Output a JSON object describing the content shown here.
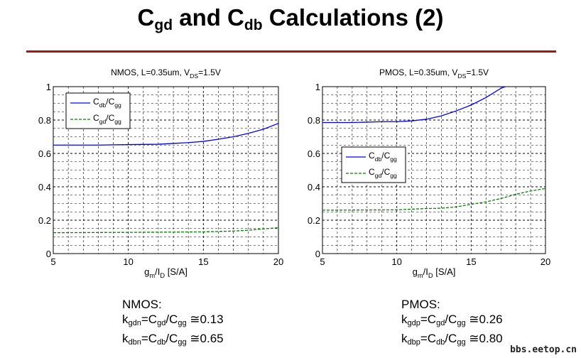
{
  "title": [
    {
      "t": "C"
    },
    {
      "s": "gd"
    },
    {
      "t": " and C"
    },
    {
      "s": "db"
    },
    {
      "t": " Calculations (2)"
    }
  ],
  "watermark": "bbs.eetop.cn",
  "notes": [
    {
      "heading": "NMOS:",
      "lines": [
        [
          {
            "t": "k"
          },
          {
            "s": "gdn"
          },
          {
            "t": "=C"
          },
          {
            "s": "gd"
          },
          {
            "t": "/C"
          },
          {
            "s": "gg"
          },
          {
            "t": " ≅0.13"
          }
        ],
        [
          {
            "t": "k"
          },
          {
            "s": "dbn"
          },
          {
            "t": "=C"
          },
          {
            "s": "db"
          },
          {
            "t": "/C"
          },
          {
            "s": "gg"
          },
          {
            "t": " ≅0.65"
          }
        ]
      ]
    },
    {
      "heading": "PMOS:",
      "lines": [
        [
          {
            "t": "k"
          },
          {
            "s": "gdp"
          },
          {
            "t": "=C"
          },
          {
            "s": "gd"
          },
          {
            "t": "/C"
          },
          {
            "s": "gg"
          },
          {
            "t": " ≅0.26"
          }
        ],
        [
          {
            "t": "k"
          },
          {
            "s": "dbp"
          },
          {
            "t": "=C"
          },
          {
            "s": "db"
          },
          {
            "t": "/C"
          },
          {
            "s": "gg"
          },
          {
            "t": " ≅0.80"
          }
        ]
      ]
    }
  ],
  "chart_data": [
    {
      "type": "line",
      "title": [
        {
          "t": "NMOS, L=0.35um, V"
        },
        {
          "s": "DS"
        },
        {
          "t": "=1.5V"
        }
      ],
      "xlabel": [
        {
          "t": "g"
        },
        {
          "s": "m"
        },
        {
          "t": "/I"
        },
        {
          "s": "D"
        },
        {
          "t": "  [S/A]"
        }
      ],
      "xlim": [
        5,
        20
      ],
      "ylim": [
        0,
        1
      ],
      "xticks": [
        "5",
        "10",
        "15",
        "20"
      ],
      "yticks": [
        "0",
        "0.2",
        "0.4",
        "0.6",
        "0.8",
        "1"
      ],
      "grid": true,
      "legend_placement": "top-left",
      "series": [
        {
          "name": [
            {
              "t": "C"
            },
            {
              "s": "db"
            },
            {
              "t": "/C"
            },
            {
              "s": "gg"
            }
          ],
          "color": "#0000ff",
          "style": "solid",
          "x": [
            5,
            8,
            10,
            12,
            14,
            15,
            16,
            17,
            18,
            19,
            20
          ],
          "y": [
            0.65,
            0.65,
            0.653,
            0.655,
            0.665,
            0.672,
            0.685,
            0.7,
            0.72,
            0.745,
            0.78
          ]
        },
        {
          "name": [
            {
              "t": "C"
            },
            {
              "s": "gd"
            },
            {
              "t": "/C"
            },
            {
              "s": "gg"
            }
          ],
          "color": "#008000",
          "style": "dashed",
          "x": [
            5,
            10,
            15,
            17,
            18,
            19,
            20
          ],
          "y": [
            0.125,
            0.127,
            0.13,
            0.135,
            0.14,
            0.148,
            0.155
          ]
        }
      ]
    },
    {
      "type": "line",
      "title": [
        {
          "t": "PMOS, L=0.35um, V"
        },
        {
          "s": "DS"
        },
        {
          "t": "=1.5V"
        }
      ],
      "xlabel": [
        {
          "t": "g"
        },
        {
          "s": "m"
        },
        {
          "t": "/I"
        },
        {
          "s": "D"
        },
        {
          "t": "  [S/A]"
        }
      ],
      "xlim": [
        5,
        20
      ],
      "ylim": [
        0,
        1
      ],
      "xticks": [
        "5",
        "10",
        "15",
        "20"
      ],
      "yticks": [
        "0",
        "0.2",
        "0.4",
        "0.6",
        "0.8",
        "1"
      ],
      "grid": true,
      "legend_placement": "center-left",
      "series": [
        {
          "name": [
            {
              "t": "C"
            },
            {
              "s": "db"
            },
            {
              "t": "/C"
            },
            {
              "s": "gg"
            }
          ],
          "color": "#0000ff",
          "style": "solid",
          "x": [
            5,
            7,
            9,
            10,
            11,
            12,
            13,
            14,
            15,
            16,
            17,
            17.3
          ],
          "y": [
            0.785,
            0.785,
            0.79,
            0.79,
            0.795,
            0.805,
            0.825,
            0.855,
            0.89,
            0.935,
            0.99,
            1.0
          ]
        },
        {
          "name": [
            {
              "t": "C"
            },
            {
              "s": "gd"
            },
            {
              "t": "/C"
            },
            {
              "s": "gg"
            }
          ],
          "color": "#008000",
          "style": "dashed",
          "x": [
            5,
            10,
            12,
            13,
            14,
            15,
            16,
            17,
            18,
            19,
            20
          ],
          "y": [
            0.26,
            0.262,
            0.27,
            0.272,
            0.28,
            0.295,
            0.31,
            0.33,
            0.355,
            0.375,
            0.39
          ]
        }
      ]
    }
  ]
}
